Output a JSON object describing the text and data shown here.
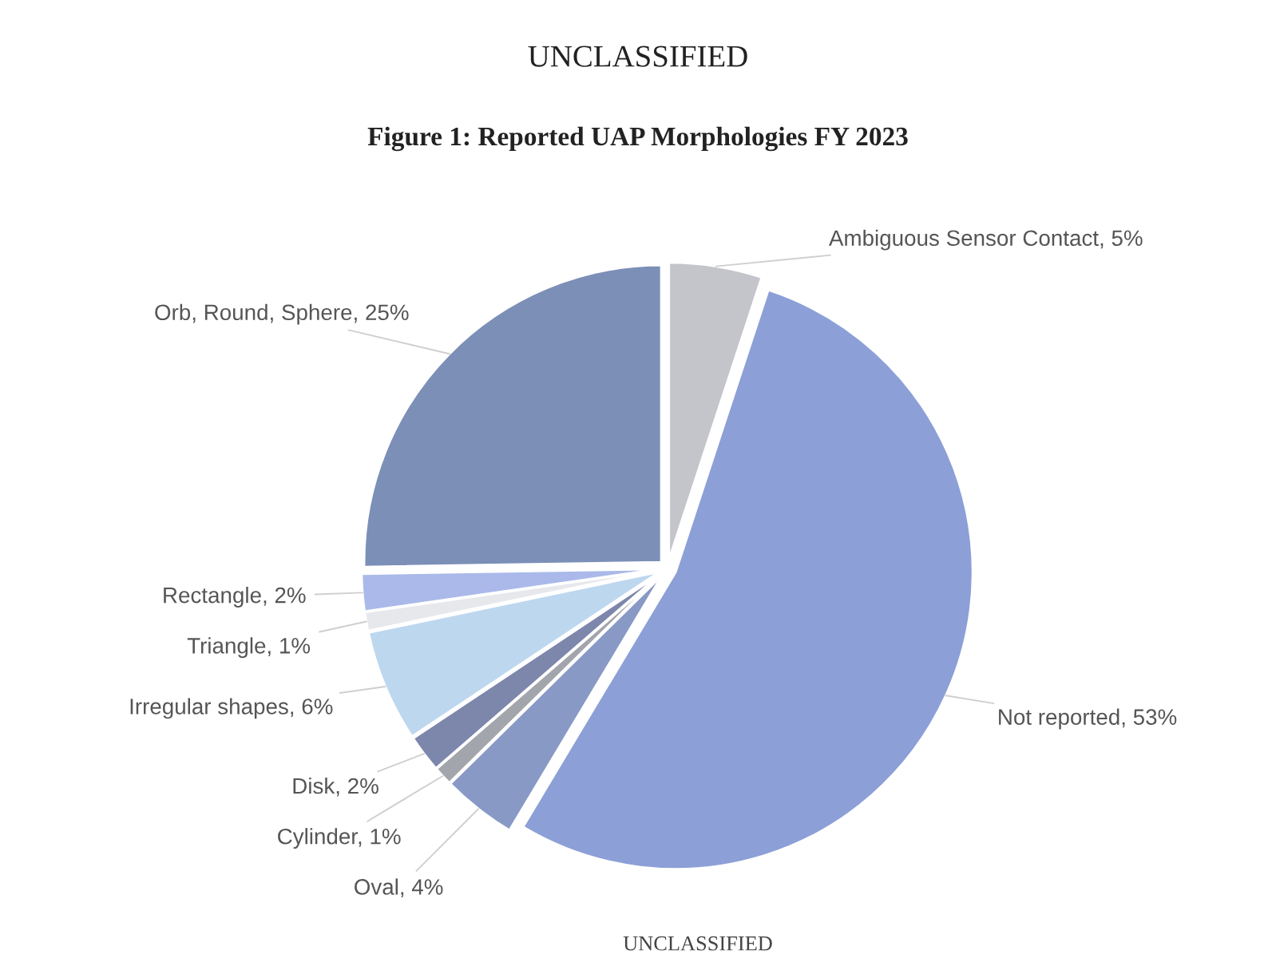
{
  "chart_data": {
    "type": "pie",
    "title": "Figure 1: Reported UAP Morphologies FY 2023",
    "annotations": [
      "UNCLASSIFIED",
      "UNCLASSIFIED"
    ],
    "categories": [
      "Ambiguous Sensor Contact",
      "Not reported",
      "Oval",
      "Cylinder",
      "Disk",
      "Irregular shapes",
      "Triangle",
      "Rectangle",
      "Orb, Round, Sphere"
    ],
    "values": [
      5,
      53,
      4,
      1,
      2,
      6,
      1,
      2,
      25
    ],
    "value_labels": [
      "5%",
      "53%",
      "4%",
      "1%",
      "2%",
      "6%",
      "1%",
      "2%",
      "25%"
    ],
    "colors": [
      "#c3c5cb",
      "#8c9fd6",
      "#8899c6",
      "#a3a5ad",
      "#7d86ab",
      "#bdd7ef",
      "#e6e8ec",
      "#aab9e9",
      "#7b8fb7"
    ]
  }
}
